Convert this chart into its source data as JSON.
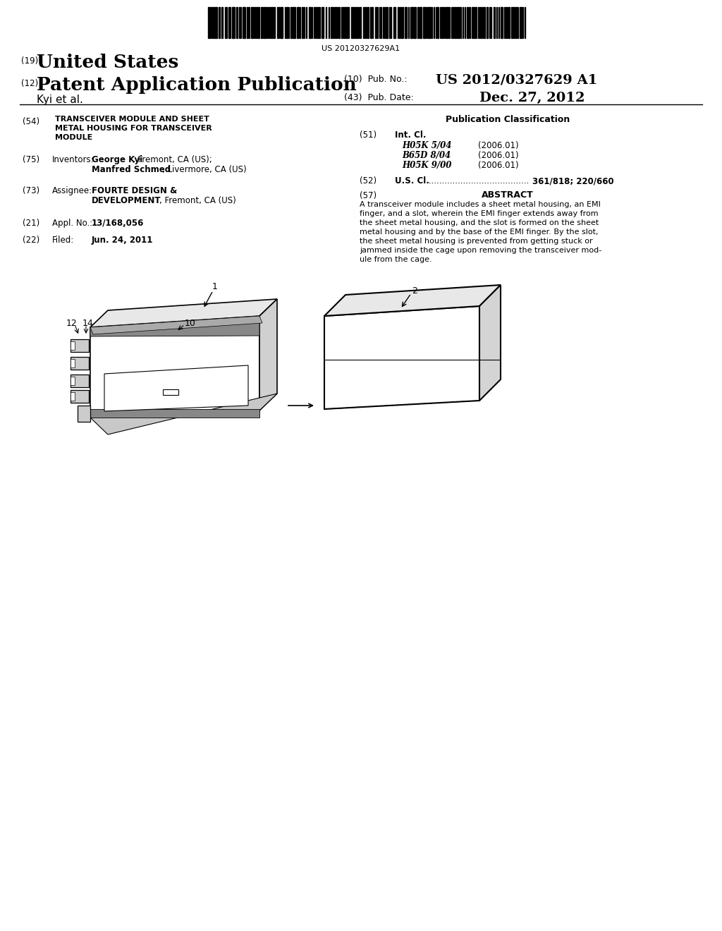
{
  "bg_color": "#ffffff",
  "barcode_text": "US 20120327629A1",
  "header_19": "(19)",
  "header_19_text": "United States",
  "header_12": "(12)",
  "header_12_text": "Patent Application Publication",
  "header_kyi": "Kyi et al.",
  "header_10_pub_label": "(10)  Pub. No.:",
  "header_10_pub_val": "US 2012/0327629 A1",
  "header_43_label": "(43)  Pub. Date:",
  "header_43_val": "Dec. 27, 2012",
  "field54_label": "(54)",
  "field75_label": "(75)",
  "field73_label": "(73)",
  "field21_label": "(21)",
  "field22_label": "(22)",
  "pub_class_title": "Publication Classification",
  "field51_label": "(51)",
  "field51_text": "Int. Cl.",
  "int_cl_entries": [
    {
      "code": "H05K 5/04",
      "year": "(2006.01)"
    },
    {
      "code": "B65D 8/04",
      "year": "(2006.01)"
    },
    {
      "code": "H05K 9/00",
      "year": "(2006.01)"
    }
  ],
  "field52_label": "(52)",
  "field52_text": "U.S. Cl.",
  "field52_dots": "......................................",
  "field52_val": "361/818; 220/660",
  "field57_label": "(57)",
  "field57_title": "ABSTRACT",
  "abstract_lines": [
    "A transceiver module includes a sheet metal housing, an EMI",
    "finger, and a slot, wherein the EMI finger extends away from",
    "the sheet metal housing, and the slot is formed on the sheet",
    "metal housing and by the base of the EMI finger. By the slot,",
    "the sheet metal housing is prevented from getting stuck or",
    "jammed inside the cage upon removing the transceiver mod-",
    "ule from the cage."
  ]
}
